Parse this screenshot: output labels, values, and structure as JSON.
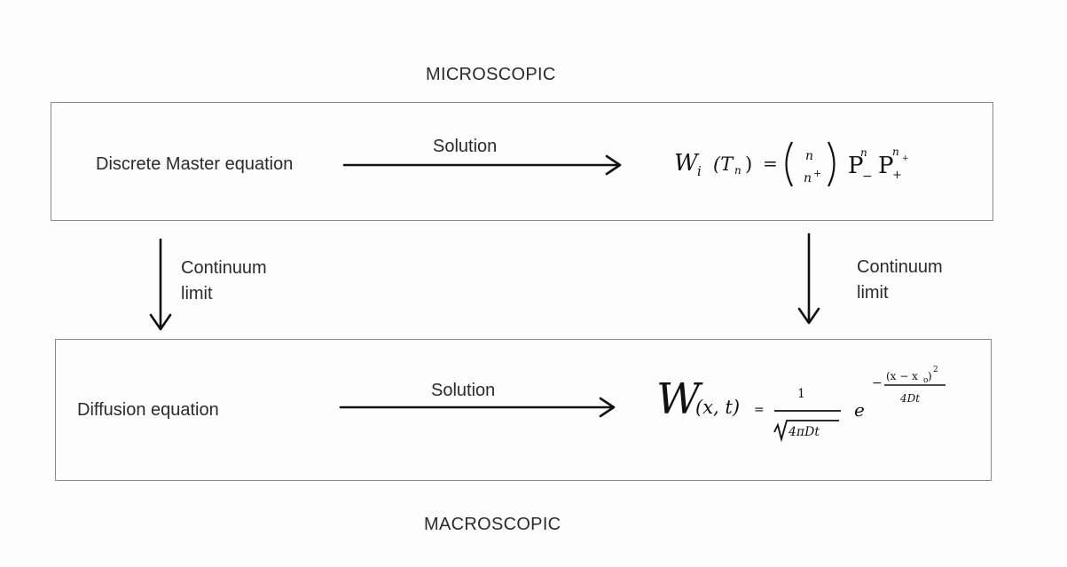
{
  "top_heading": "MICROSCOPIC",
  "bottom_heading": "MACROSCOPIC",
  "top_box": {
    "left_label": "Discrete Master equation",
    "arrow_label": "Solution",
    "formula": {
      "lhs": "W",
      "lhs_sub": "i",
      "arg": "(T",
      "arg_sub": "n",
      "arg_close": ")",
      "equals": "=",
      "binom_top": "n",
      "binom_bottom": "n",
      "binom_bottom_sup": "+",
      "p1": "P",
      "p1_sub": "−",
      "p1_sup": "n",
      "p2": "P",
      "p2_sub": "+",
      "p2_sup": "n",
      "p2_sup_sub": "+"
    }
  },
  "bottom_box": {
    "left_label": "Diffusion equation",
    "arrow_label": "Solution",
    "formula": {
      "lhs": "W",
      "args": "(x, t)",
      "equals": "=",
      "frac_num": "1",
      "frac_den": "4πDt",
      "base": "e",
      "exp_minus": "−",
      "exp_num": "(x − x",
      "exp_num_sub": "o",
      "exp_num_close": ")",
      "exp_num_sup": "2",
      "exp_den": "4Dt"
    }
  },
  "left_vertical": {
    "label_line1": "Continuum",
    "label_line2": "limit"
  },
  "right_vertical": {
    "label_line1": "Continuum",
    "label_line2": "limit"
  }
}
